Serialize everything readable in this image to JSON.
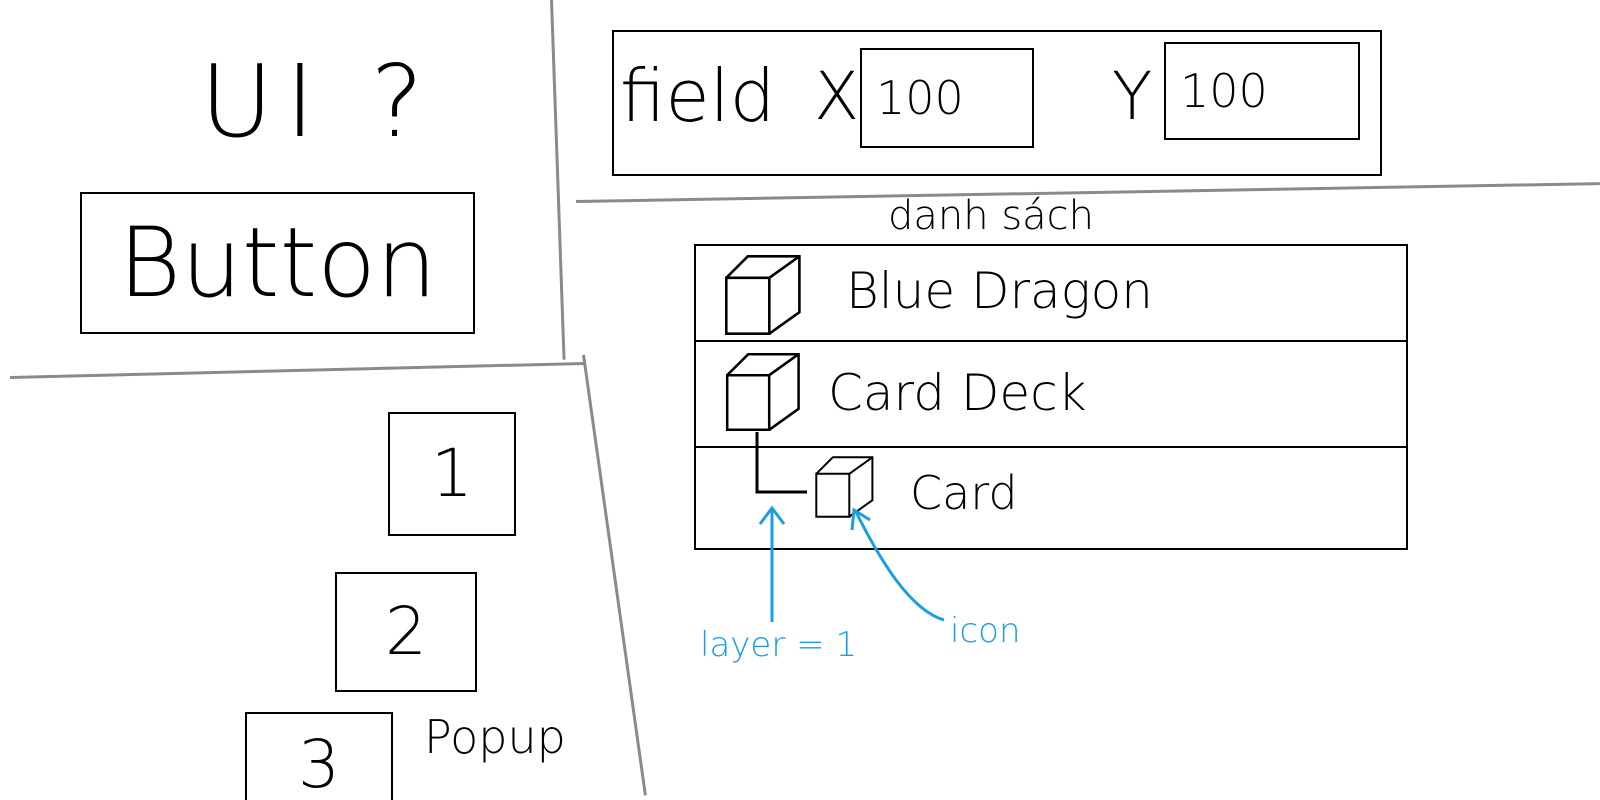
{
  "left_panel": {
    "heading": "UI ?",
    "button_label": "Button"
  },
  "popup_panel": {
    "items": [
      "1",
      "2",
      "3"
    ],
    "label": "Popup"
  },
  "field_panel": {
    "label": "field",
    "x_label": "X",
    "x_value": "100",
    "y_label": "Y",
    "y_value": "100"
  },
  "list_panel": {
    "title": "danh sách",
    "rows": [
      {
        "label": "Blue Dragon",
        "icon": "cube-icon",
        "layer": 0
      },
      {
        "label": "Card Deck",
        "icon": "cube-icon",
        "layer": 0
      },
      {
        "label": "Card",
        "icon": "cube-icon",
        "layer": 1
      }
    ]
  },
  "annotations": {
    "layer_note": "layer = 1",
    "icon_note": "icon",
    "color": "#1a9ee0"
  }
}
